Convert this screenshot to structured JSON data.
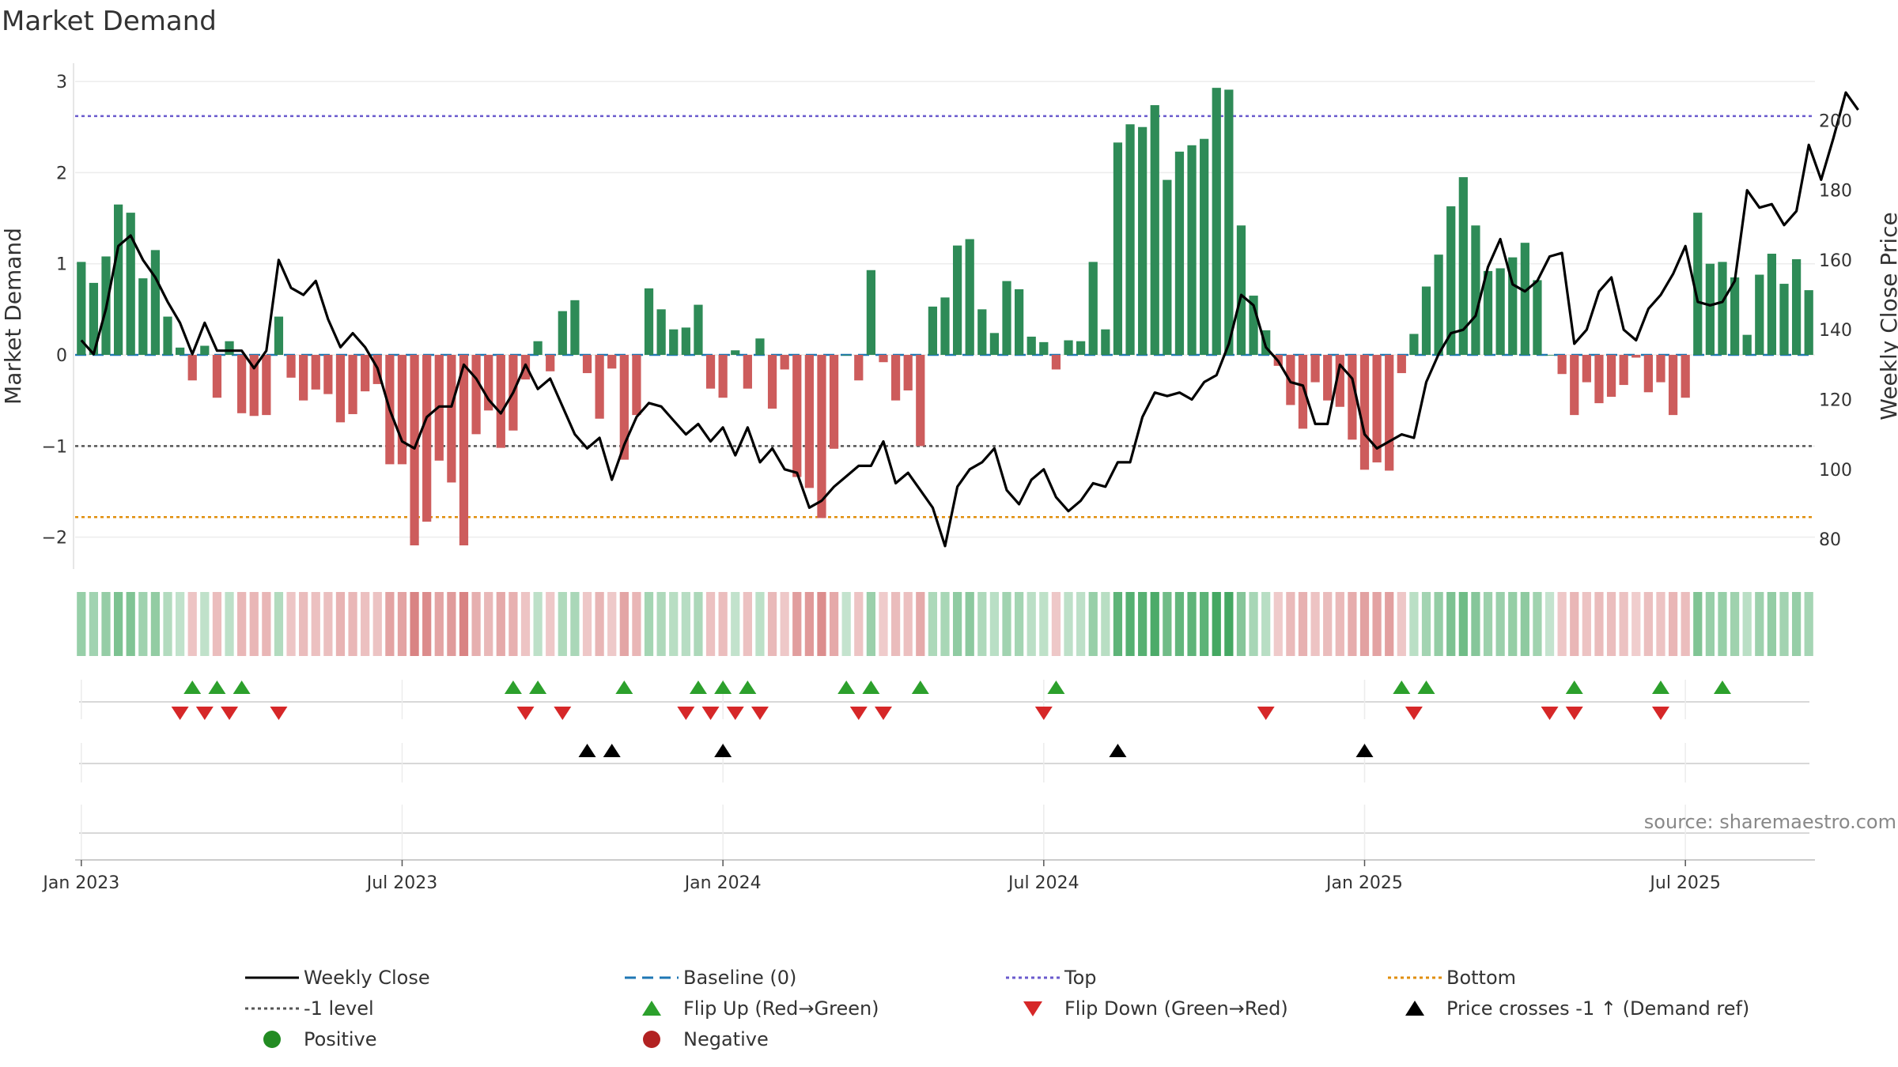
{
  "chart_data": {
    "type": "bar",
    "title": "Market Demand",
    "ylabel_left": "Market Demand",
    "ylabel_right": "Weekly Close Price",
    "ylim_left": [
      -2.35,
      3.2
    ],
    "ylim_right": [
      71.4,
      216.4
    ],
    "yticks_left": [
      3,
      2,
      1,
      0,
      -1,
      -2
    ],
    "yticks_right": [
      200,
      180,
      160,
      140,
      120,
      100,
      80
    ],
    "xticks": [
      "Jan 2023",
      "Jul 2023",
      "Jan 2024",
      "Jul 2024",
      "Jan 2025",
      "Jul 2025"
    ],
    "xtick_weeks": [
      1,
      27,
      53,
      79,
      105,
      131
    ],
    "reference_lines": {
      "baseline": 0,
      "top": 2.62,
      "bottom": -1.78,
      "minus_one": -1
    },
    "colors": {
      "positive": "#2e8b57",
      "negative": "#cd5c5c",
      "close": "#000000",
      "top": "#6a5acd",
      "bottom": "#e08e0b",
      "minus_one": "#555555",
      "baseline": "#1f77b4",
      "flip_up": "#2ca02c",
      "flip_down": "#d62728",
      "cross": "#000000"
    },
    "demand": [
      1.02,
      0.79,
      1.08,
      1.65,
      1.56,
      0.84,
      1.15,
      0.42,
      0.08,
      -0.28,
      0.1,
      -0.47,
      0.15,
      -0.64,
      -0.67,
      -0.66,
      0.42,
      -0.25,
      -0.5,
      -0.38,
      -0.43,
      -0.74,
      -0.65,
      -0.4,
      -0.32,
      -1.2,
      -1.2,
      -2.09,
      -1.83,
      -1.16,
      -1.4,
      -2.09,
      -0.87,
      -0.61,
      -1.02,
      -0.83,
      -0.27,
      0.15,
      -0.18,
      0.48,
      0.6,
      -0.2,
      -0.7,
      -0.15,
      -1.15,
      -0.66,
      0.73,
      0.5,
      0.28,
      0.3,
      0.55,
      -0.37,
      -0.47,
      0.05,
      -0.37,
      0.18,
      -0.59,
      -0.16,
      -1.34,
      -1.46,
      -1.79,
      -1.03,
      0.0,
      -0.28,
      0.93,
      -0.08,
      -0.5,
      -0.39,
      -1.0,
      0.53,
      0.63,
      1.2,
      1.27,
      0.5,
      0.24,
      0.81,
      0.72,
      0.2,
      0.14,
      -0.16,
      0.16,
      0.15,
      1.02,
      0.28,
      2.33,
      2.53,
      2.5,
      2.74,
      1.92,
      2.23,
      2.3,
      2.37,
      2.93,
      2.91,
      1.42,
      0.65,
      0.27,
      -0.12,
      -0.55,
      -0.81,
      -0.3,
      -0.5,
      -0.57,
      -0.93,
      -1.26,
      -1.18,
      -1.27,
      -0.2,
      0.23,
      0.75,
      1.1,
      1.63,
      1.95,
      1.42,
      0.92,
      0.95,
      1.07,
      1.23,
      0.82,
      0.0,
      -0.21,
      -0.66,
      -0.3,
      -0.53,
      -0.46,
      -0.33,
      -0.03,
      -0.41,
      -0.3,
      -0.66,
      -0.47,
      1.56,
      1.0,
      1.02,
      0.85,
      0.22,
      0.88,
      1.11,
      0.78,
      1.05,
      0.71
    ],
    "weekly_close": [
      137,
      133,
      146,
      164,
      167,
      160,
      155,
      148,
      142,
      133,
      142,
      134,
      134,
      134,
      129,
      134,
      160,
      152,
      150,
      154,
      143,
      135,
      139,
      135,
      129,
      117,
      108,
      106,
      115,
      118,
      118,
      130,
      126,
      120,
      116,
      122,
      130,
      123,
      126,
      118,
      110,
      106,
      109,
      97,
      107,
      115,
      119,
      118,
      114,
      110,
      113,
      108,
      112,
      104,
      112,
      102,
      106,
      100,
      99,
      89,
      91,
      95,
      98,
      101,
      101,
      108,
      96,
      99,
      94,
      89,
      78,
      95,
      100,
      102,
      106,
      94,
      90,
      97,
      100,
      92,
      88,
      91,
      96,
      95,
      102,
      102,
      115,
      122,
      121,
      122,
      120,
      125,
      127,
      136,
      150,
      147,
      135,
      131,
      125,
      124,
      113,
      113,
      130,
      126,
      110,
      106,
      108,
      110,
      109,
      125,
      133,
      139,
      140,
      144,
      158,
      166,
      153,
      151,
      154,
      161,
      162,
      136,
      140,
      151,
      155,
      140,
      137,
      146,
      150,
      156,
      164,
      148,
      147,
      148,
      154,
      180,
      175,
      176,
      170,
      174,
      193,
      183,
      195,
      208,
      203
    ],
    "flip_up_weeks": [
      10,
      12,
      14,
      36,
      38,
      45,
      51,
      53,
      55,
      63,
      65,
      69,
      80,
      108,
      110,
      122,
      129,
      134
    ],
    "flip_down_weeks": [
      9,
      11,
      13,
      17,
      37,
      40,
      50,
      52,
      54,
      56,
      64,
      66,
      79,
      97,
      109,
      120,
      122,
      129
    ],
    "cross_weeks": [
      42,
      44,
      53,
      85,
      105
    ],
    "legend": [
      {
        "label": "Weekly Close",
        "marker": "solid-line",
        "color": "#000000"
      },
      {
        "label": "Baseline (0)",
        "marker": "dashed-line",
        "color": "#1f77b4"
      },
      {
        "label": "Top",
        "marker": "dotted-line",
        "color": "#6a5acd"
      },
      {
        "label": "Bottom",
        "marker": "dotted-line",
        "color": "#e08e0b"
      },
      {
        "label": "-1 level",
        "marker": "dotted-line",
        "color": "#555555"
      },
      {
        "label": "Flip Up (Red→Green)",
        "marker": "triangle-up",
        "color": "#2ca02c"
      },
      {
        "label": "Flip Down (Green→Red)",
        "marker": "triangle-down",
        "color": "#d62728"
      },
      {
        "label": "Price crosses -1 ↑ (Demand ref)",
        "marker": "triangle-up",
        "color": "#000000"
      },
      {
        "label": "Positive",
        "marker": "circle",
        "color": "#228b22"
      },
      {
        "label": "Negative",
        "marker": "circle",
        "color": "#b22222"
      }
    ],
    "source": "source: sharemaestro.com"
  }
}
